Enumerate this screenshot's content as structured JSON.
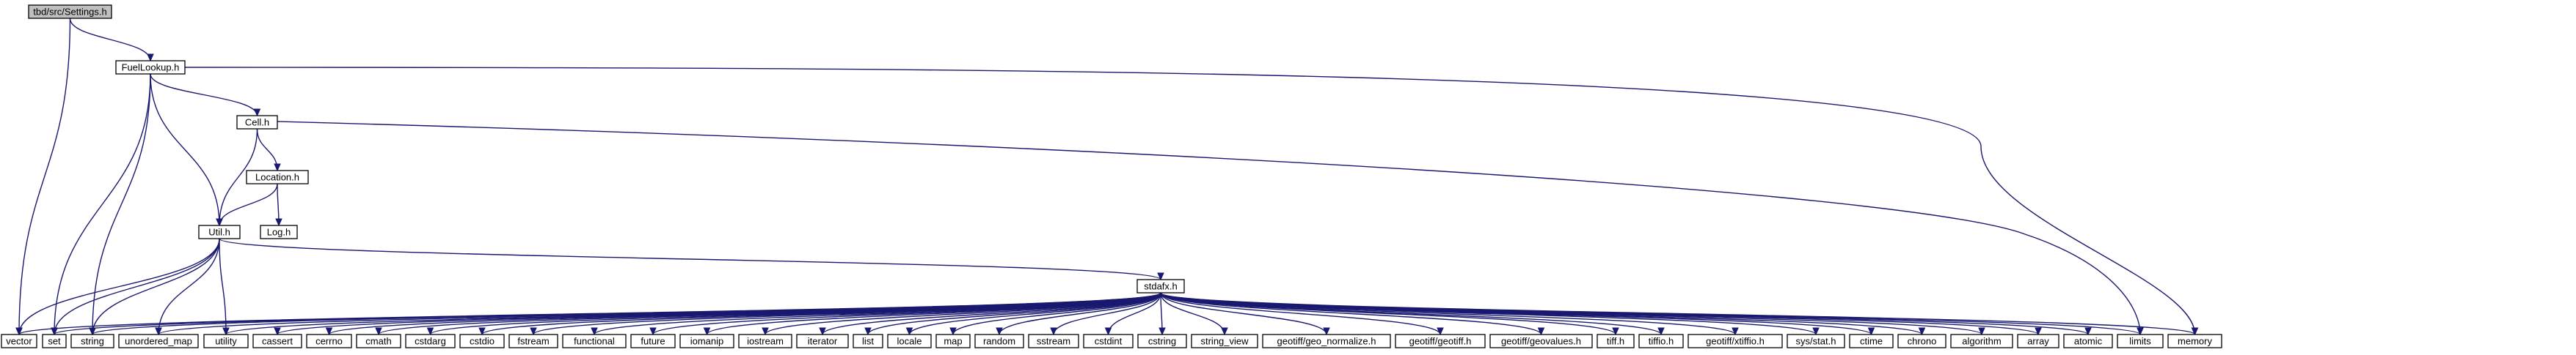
{
  "diagram": {
    "nodes": [
      {
        "id": "settings",
        "label": "tbd/src/Settings.h",
        "root": true
      },
      {
        "id": "fuellookup",
        "label": "FuelLookup.h"
      },
      {
        "id": "cell",
        "label": "Cell.h"
      },
      {
        "id": "location",
        "label": "Location.h"
      },
      {
        "id": "log",
        "label": "Log.h"
      },
      {
        "id": "util",
        "label": "Util.h"
      },
      {
        "id": "stdafx",
        "label": "stdafx.h"
      },
      {
        "id": "vector",
        "label": "vector"
      },
      {
        "id": "set",
        "label": "set"
      },
      {
        "id": "string",
        "label": "string"
      },
      {
        "id": "unordered_map",
        "label": "unordered_map"
      },
      {
        "id": "utility",
        "label": "utility"
      },
      {
        "id": "cassert",
        "label": "cassert"
      },
      {
        "id": "cerrno",
        "label": "cerrno"
      },
      {
        "id": "cmath",
        "label": "cmath"
      },
      {
        "id": "cstdarg",
        "label": "cstdarg"
      },
      {
        "id": "cstdio",
        "label": "cstdio"
      },
      {
        "id": "fstream",
        "label": "fstream"
      },
      {
        "id": "functional",
        "label": "functional"
      },
      {
        "id": "future",
        "label": "future"
      },
      {
        "id": "iomanip",
        "label": "iomanip"
      },
      {
        "id": "iostream",
        "label": "iostream"
      },
      {
        "id": "iterator",
        "label": "iterator"
      },
      {
        "id": "list",
        "label": "list"
      },
      {
        "id": "locale",
        "label": "locale"
      },
      {
        "id": "map",
        "label": "map"
      },
      {
        "id": "random",
        "label": "random"
      },
      {
        "id": "sstream",
        "label": "sstream"
      },
      {
        "id": "cstdint",
        "label": "cstdint"
      },
      {
        "id": "cstring",
        "label": "cstring"
      },
      {
        "id": "string_view",
        "label": "string_view"
      },
      {
        "id": "geo_normalize",
        "label": "geotiff/geo_normalize.h"
      },
      {
        "id": "geotiff",
        "label": "geotiff/geotiff.h"
      },
      {
        "id": "geovalues",
        "label": "geotiff/geovalues.h"
      },
      {
        "id": "tiff",
        "label": "tiff.h"
      },
      {
        "id": "tiffio",
        "label": "tiffio.h"
      },
      {
        "id": "xtiffio",
        "label": "geotiff/xtiffio.h"
      },
      {
        "id": "sysstat",
        "label": "sys/stat.h"
      },
      {
        "id": "ctime",
        "label": "ctime"
      },
      {
        "id": "chrono",
        "label": "chrono"
      },
      {
        "id": "algorithm",
        "label": "algorithm"
      },
      {
        "id": "array",
        "label": "array"
      },
      {
        "id": "atomic",
        "label": "atomic"
      },
      {
        "id": "limits",
        "label": "limits"
      },
      {
        "id": "memory",
        "label": "memory"
      }
    ],
    "edges": [
      [
        "settings",
        "fuellookup"
      ],
      [
        "settings",
        "vector"
      ],
      [
        "fuellookup",
        "cell"
      ],
      [
        "fuellookup",
        "util"
      ],
      [
        "fuellookup",
        "set"
      ],
      [
        "fuellookup",
        "string"
      ],
      [
        "fuellookup",
        "memory"
      ],
      [
        "cell",
        "location"
      ],
      [
        "cell",
        "util"
      ],
      [
        "cell",
        "limits"
      ],
      [
        "location",
        "util"
      ],
      [
        "location",
        "log"
      ],
      [
        "util",
        "stdafx"
      ],
      [
        "util",
        "vector"
      ],
      [
        "util",
        "set"
      ],
      [
        "util",
        "string"
      ],
      [
        "util",
        "unordered_map"
      ],
      [
        "util",
        "utility"
      ],
      [
        "stdafx",
        "vector"
      ],
      [
        "stdafx",
        "set"
      ],
      [
        "stdafx",
        "string"
      ],
      [
        "stdafx",
        "unordered_map"
      ],
      [
        "stdafx",
        "utility"
      ],
      [
        "stdafx",
        "cassert"
      ],
      [
        "stdafx",
        "cerrno"
      ],
      [
        "stdafx",
        "cmath"
      ],
      [
        "stdafx",
        "cstdarg"
      ],
      [
        "stdafx",
        "cstdio"
      ],
      [
        "stdafx",
        "fstream"
      ],
      [
        "stdafx",
        "functional"
      ],
      [
        "stdafx",
        "future"
      ],
      [
        "stdafx",
        "iomanip"
      ],
      [
        "stdafx",
        "iostream"
      ],
      [
        "stdafx",
        "iterator"
      ],
      [
        "stdafx",
        "list"
      ],
      [
        "stdafx",
        "locale"
      ],
      [
        "stdafx",
        "map"
      ],
      [
        "stdafx",
        "random"
      ],
      [
        "stdafx",
        "sstream"
      ],
      [
        "stdafx",
        "cstdint"
      ],
      [
        "stdafx",
        "cstring"
      ],
      [
        "stdafx",
        "string_view"
      ],
      [
        "stdafx",
        "geo_normalize"
      ],
      [
        "stdafx",
        "geotiff"
      ],
      [
        "stdafx",
        "geovalues"
      ],
      [
        "stdafx",
        "tiff"
      ],
      [
        "stdafx",
        "tiffio"
      ],
      [
        "stdafx",
        "xtiffio"
      ],
      [
        "stdafx",
        "sysstat"
      ],
      [
        "stdafx",
        "ctime"
      ],
      [
        "stdafx",
        "chrono"
      ],
      [
        "stdafx",
        "algorithm"
      ],
      [
        "stdafx",
        "array"
      ],
      [
        "stdafx",
        "atomic"
      ],
      [
        "stdafx",
        "limits"
      ],
      [
        "stdafx",
        "memory"
      ]
    ]
  },
  "colors": {
    "edge": "#191970",
    "node_border": "#000000",
    "root_fill": "#bfbfbf",
    "node_fill": "#ffffff"
  }
}
